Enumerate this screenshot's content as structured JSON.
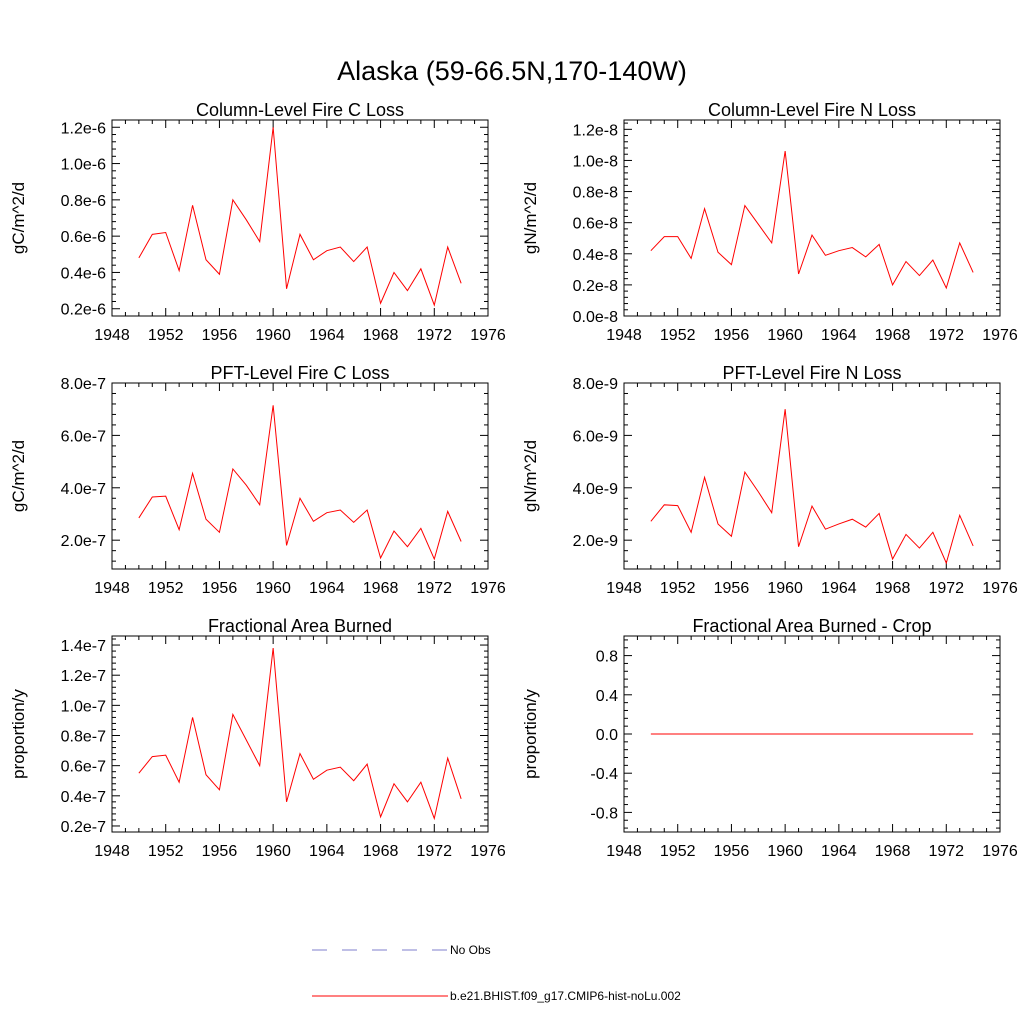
{
  "figure": {
    "title": "Alaska (59-66.5N,170-140W)"
  },
  "colors": {
    "model": "#ff0000",
    "obs": "#7f7fcc",
    "axis": "#000000"
  },
  "legend": {
    "obs_label": "No Obs",
    "model_label": "b.e21.BHIST.f09_g17.CMIP6-hist-noLu.002"
  },
  "chart_data": [
    {
      "type": "line",
      "title": "Column-Level Fire C Loss",
      "ylabel": "gC/m^2/d",
      "xlim": [
        1948,
        1976
      ],
      "ylim": [
        1.6e-07,
        1.24e-06
      ],
      "xticks": [
        1948,
        1952,
        1956,
        1960,
        1964,
        1968,
        1972,
        1976
      ],
      "xtick_labels": [
        "1948",
        "1952",
        "1956",
        "1960",
        "1964",
        "1968",
        "1972",
        "1976"
      ],
      "yticks": [
        2e-07,
        4e-07,
        6e-07,
        8e-07,
        1e-06,
        1.2e-06
      ],
      "ytick_labels": [
        "0.2e-6",
        "0.4e-6",
        "0.6e-6",
        "0.8e-6",
        "1.0e-6",
        "1.2e-6"
      ],
      "yminor_step": 4e-08,
      "x": [
        1950,
        1951,
        1952,
        1953,
        1954,
        1955,
        1956,
        1957,
        1958,
        1959,
        1960,
        1961,
        1962,
        1963,
        1964,
        1965,
        1966,
        1967,
        1968,
        1969,
        1970,
        1971,
        1972,
        1973,
        1974
      ],
      "series": [
        {
          "values": [
            4.8e-07,
            6.1e-07,
            6.2e-07,
            4.1e-07,
            7.7e-07,
            4.7e-07,
            3.9e-07,
            8e-07,
            6.9e-07,
            5.7e-07,
            1.2e-06,
            3.1e-07,
            6.1e-07,
            4.7e-07,
            5.2e-07,
            5.4e-07,
            4.6e-07,
            5.4e-07,
            2.3e-07,
            4e-07,
            3e-07,
            4.2e-07,
            2.2e-07,
            5.4e-07,
            3.4e-07
          ]
        }
      ]
    },
    {
      "type": "line",
      "title": "Column-Level Fire N Loss",
      "ylabel": "gN/m^2/d",
      "xlim": [
        1948,
        1976
      ],
      "ylim": [
        0.0,
        1.26e-08
      ],
      "xticks": [
        1948,
        1952,
        1956,
        1960,
        1964,
        1968,
        1972,
        1976
      ],
      "xtick_labels": [
        "1948",
        "1952",
        "1956",
        "1960",
        "1964",
        "1968",
        "1972",
        "1976"
      ],
      "yticks": [
        0.0,
        2e-09,
        4e-09,
        6e-09,
        8e-09,
        1e-08,
        1.2e-08
      ],
      "ytick_labels": [
        "0.0e-8",
        "0.2e-8",
        "0.4e-8",
        "0.6e-8",
        "0.8e-8",
        "1.0e-8",
        "1.2e-8"
      ],
      "yminor_step": 4e-10,
      "x": [
        1950,
        1951,
        1952,
        1953,
        1954,
        1955,
        1956,
        1957,
        1958,
        1959,
        1960,
        1961,
        1962,
        1963,
        1964,
        1965,
        1966,
        1967,
        1968,
        1969,
        1970,
        1971,
        1972,
        1973,
        1974
      ],
      "series": [
        {
          "values": [
            4.2e-09,
            5.1e-09,
            5.1e-09,
            3.7e-09,
            6.9e-09,
            4.1e-09,
            3.3e-09,
            7.1e-09,
            5.9e-09,
            4.7e-09,
            1.06e-08,
            2.7e-09,
            5.2e-09,
            3.9e-09,
            4.2e-09,
            4.4e-09,
            3.8e-09,
            4.6e-09,
            2e-09,
            3.5e-09,
            2.6e-09,
            3.6e-09,
            1.8e-09,
            4.7e-09,
            2.8e-09
          ]
        }
      ]
    },
    {
      "type": "line",
      "title": "PFT-Level Fire C Loss",
      "ylabel": "gC/m^2/d",
      "xlim": [
        1948,
        1976
      ],
      "ylim": [
        9e-08,
        8e-07
      ],
      "xticks": [
        1948,
        1952,
        1956,
        1960,
        1964,
        1968,
        1972,
        1976
      ],
      "xtick_labels": [
        "1948",
        "1952",
        "1956",
        "1960",
        "1964",
        "1968",
        "1972",
        "1976"
      ],
      "yticks": [
        2e-07,
        4e-07,
        6e-07,
        8e-07
      ],
      "ytick_labels": [
        "2.0e-7",
        "4.0e-7",
        "6.0e-7",
        "8.0e-7"
      ],
      "yminor_step": 4e-08,
      "x": [
        1950,
        1951,
        1952,
        1953,
        1954,
        1955,
        1956,
        1957,
        1958,
        1959,
        1960,
        1961,
        1962,
        1963,
        1964,
        1965,
        1966,
        1967,
        1968,
        1969,
        1970,
        1971,
        1972,
        1973,
        1974
      ],
      "series": [
        {
          "values": [
            2.85e-07,
            3.65e-07,
            3.68e-07,
            2.4e-07,
            4.55e-07,
            2.8e-07,
            2.3e-07,
            4.72e-07,
            4.1e-07,
            3.35e-07,
            7.15e-07,
            1.8e-07,
            3.6e-07,
            2.72e-07,
            3.05e-07,
            3.15e-07,
            2.68e-07,
            3.15e-07,
            1.32e-07,
            2.35e-07,
            1.75e-07,
            2.45e-07,
            1.28e-07,
            3.1e-07,
            1.95e-07
          ]
        }
      ]
    },
    {
      "type": "line",
      "title": "PFT-Level Fire N Loss",
      "ylabel": "gN/m^2/d",
      "xlim": [
        1948,
        1976
      ],
      "ylim": [
        9e-10,
        8e-09
      ],
      "xticks": [
        1948,
        1952,
        1956,
        1960,
        1964,
        1968,
        1972,
        1976
      ],
      "xtick_labels": [
        "1948",
        "1952",
        "1956",
        "1960",
        "1964",
        "1968",
        "1972",
        "1976"
      ],
      "yticks": [
        2e-09,
        4e-09,
        6e-09,
        8e-09
      ],
      "ytick_labels": [
        "2.0e-9",
        "4.0e-9",
        "6.0e-9",
        "8.0e-9"
      ],
      "yminor_step": 4e-10,
      "x": [
        1950,
        1951,
        1952,
        1953,
        1954,
        1955,
        1956,
        1957,
        1958,
        1959,
        1960,
        1961,
        1962,
        1963,
        1964,
        1965,
        1966,
        1967,
        1968,
        1969,
        1970,
        1971,
        1972,
        1973,
        1974
      ],
      "series": [
        {
          "values": [
            2.72e-09,
            3.35e-09,
            3.32e-09,
            2.3e-09,
            4.4e-09,
            2.62e-09,
            2.15e-09,
            4.6e-09,
            3.85e-09,
            3.05e-09,
            7e-09,
            1.75e-09,
            3.3e-09,
            2.42e-09,
            2.62e-09,
            2.8e-09,
            2.5e-09,
            3.02e-09,
            1.28e-09,
            2.22e-09,
            1.7e-09,
            2.3e-09,
            1.13e-09,
            2.95e-09,
            1.78e-09
          ]
        }
      ]
    },
    {
      "type": "line",
      "title": "Fractional Area Burned",
      "ylabel": "proportion/y",
      "xlim": [
        1948,
        1976
      ],
      "ylim": [
        1.6e-08,
        1.46e-07
      ],
      "xticks": [
        1948,
        1952,
        1956,
        1960,
        1964,
        1968,
        1972,
        1976
      ],
      "xtick_labels": [
        "1948",
        "1952",
        "1956",
        "1960",
        "1964",
        "1968",
        "1972",
        "1976"
      ],
      "yticks": [
        2e-08,
        4e-08,
        6e-08,
        8e-08,
        1e-07,
        1.2e-07,
        1.4e-07
      ],
      "ytick_labels": [
        "0.2e-7",
        "0.4e-7",
        "0.6e-7",
        "0.8e-7",
        "1.0e-7",
        "1.2e-7",
        "1.4e-7"
      ],
      "yminor_step": 4e-09,
      "x": [
        1950,
        1951,
        1952,
        1953,
        1954,
        1955,
        1956,
        1957,
        1958,
        1959,
        1960,
        1961,
        1962,
        1963,
        1964,
        1965,
        1966,
        1967,
        1968,
        1969,
        1970,
        1971,
        1972,
        1973,
        1974
      ],
      "series": [
        {
          "values": [
            5.5e-08,
            6.6e-08,
            6.7e-08,
            4.9e-08,
            9.2e-08,
            5.4e-08,
            4.4e-08,
            9.4e-08,
            7.7e-08,
            6e-08,
            1.38e-07,
            3.6e-08,
            6.8e-08,
            5.1e-08,
            5.7e-08,
            5.9e-08,
            5e-08,
            6.1e-08,
            2.6e-08,
            4.8e-08,
            3.6e-08,
            4.9e-08,
            2.5e-08,
            6.5e-08,
            3.8e-08
          ]
        }
      ]
    },
    {
      "type": "line",
      "title": "Fractional Area Burned - Crop",
      "ylabel": "proportion/y",
      "xlim": [
        1948,
        1976
      ],
      "ylim": [
        -1.0,
        1.0
      ],
      "xticks": [
        1948,
        1952,
        1956,
        1960,
        1964,
        1968,
        1972,
        1976
      ],
      "xtick_labels": [
        "1948",
        "1952",
        "1956",
        "1960",
        "1964",
        "1968",
        "1972",
        "1976"
      ],
      "yticks": [
        -0.8,
        -0.4,
        0.0,
        0.4,
        0.8
      ],
      "ytick_labels": [
        "-0.8",
        "-0.4",
        "0.0",
        "0.4",
        "0.8"
      ],
      "yminor_step": 0.08,
      "x": [
        1950,
        1951,
        1952,
        1953,
        1954,
        1955,
        1956,
        1957,
        1958,
        1959,
        1960,
        1961,
        1962,
        1963,
        1964,
        1965,
        1966,
        1967,
        1968,
        1969,
        1970,
        1971,
        1972,
        1973,
        1974
      ],
      "series": [
        {
          "values": [
            0,
            0,
            0,
            0,
            0,
            0,
            0,
            0,
            0,
            0,
            0,
            0,
            0,
            0,
            0,
            0,
            0,
            0,
            0,
            0,
            0,
            0,
            0,
            0,
            0
          ]
        }
      ]
    }
  ]
}
